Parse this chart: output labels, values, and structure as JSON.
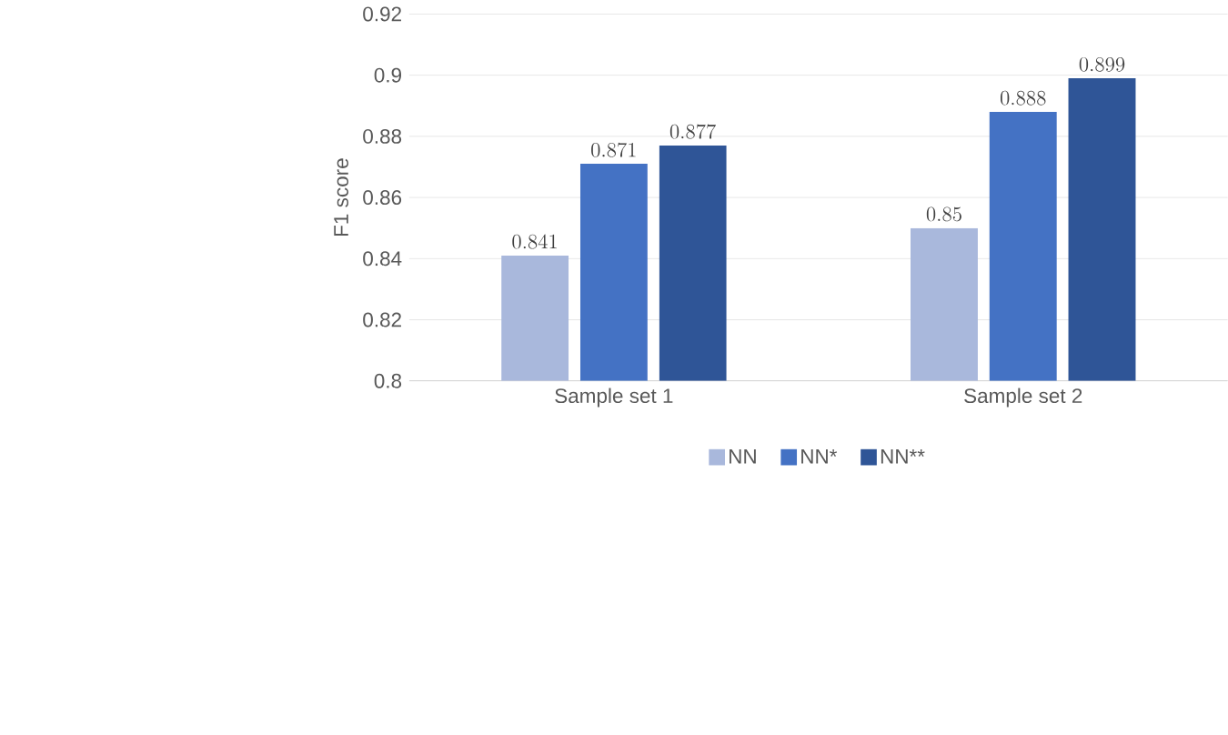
{
  "chart_data": {
    "type": "bar",
    "ylabel": "F1 score",
    "categories": [
      "Sample set 1",
      "Sample set 2"
    ],
    "series": [
      {
        "name": "NN",
        "color": "#a9b8dc",
        "values": [
          0.841,
          0.85
        ]
      },
      {
        "name": "NN*",
        "color": "#4472c4",
        "values": [
          0.871,
          0.888
        ]
      },
      {
        "name": "NN**",
        "color": "#2f5597",
        "values": [
          0.877,
          0.899
        ]
      }
    ],
    "ylim": [
      0.8,
      0.92
    ],
    "yticks": [
      0.8,
      0.82,
      0.84,
      0.86,
      0.88,
      0.9,
      0.92
    ],
    "grid": "y",
    "legend": "bottom",
    "data_labels": true
  }
}
